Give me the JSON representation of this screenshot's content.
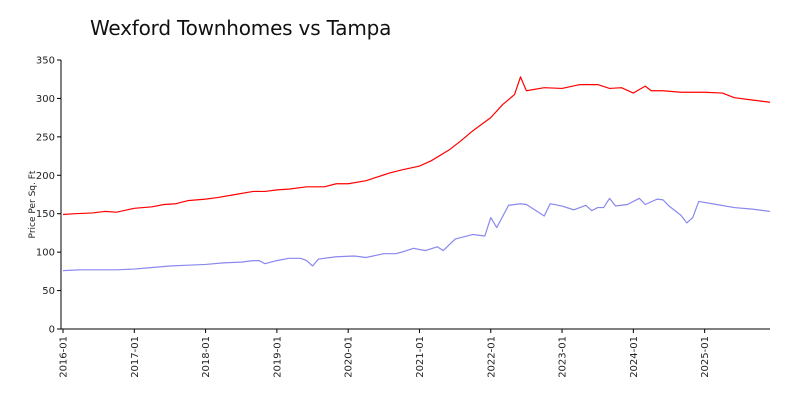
{
  "chart_data": {
    "type": "line",
    "title": "Wexford Townhomes vs Tampa",
    "xlabel": "",
    "ylabel": "Price Per Sq. Ft",
    "ylim": [
      0,
      350
    ],
    "xlim": [
      "2016-01",
      "2025-12"
    ],
    "y_ticks": [
      0,
      50,
      100,
      150,
      200,
      250,
      300,
      350
    ],
    "x_ticks": [
      "2016-01",
      "2017-01",
      "2018-01",
      "2019-01",
      "2020-01",
      "2021-01",
      "2022-01",
      "2023-01",
      "2024-01",
      "2025-01"
    ],
    "grid": false,
    "legend": "none",
    "series": [
      {
        "color": "#ff0000",
        "points": [
          [
            "2016-01",
            149
          ],
          [
            "2016-03",
            150
          ],
          [
            "2016-06",
            151
          ],
          [
            "2016-08",
            153
          ],
          [
            "2016-10",
            152
          ],
          [
            "2017-01",
            157
          ],
          [
            "2017-04",
            159
          ],
          [
            "2017-06",
            162
          ],
          [
            "2017-08",
            163
          ],
          [
            "2017-10",
            167
          ],
          [
            "2018-01",
            169
          ],
          [
            "2018-03",
            171
          ],
          [
            "2018-06",
            175
          ],
          [
            "2018-09",
            179
          ],
          [
            "2018-11",
            179
          ],
          [
            "2019-01",
            181
          ],
          [
            "2019-03",
            182
          ],
          [
            "2019-06",
            185
          ],
          [
            "2019-09",
            185
          ],
          [
            "2019-11",
            189
          ],
          [
            "2020-01",
            189
          ],
          [
            "2020-04",
            193
          ],
          [
            "2020-06",
            198
          ],
          [
            "2020-08",
            203
          ],
          [
            "2020-10",
            207
          ],
          [
            "2021-01",
            212
          ],
          [
            "2021-03",
            219
          ],
          [
            "2021-06",
            233
          ],
          [
            "2021-08",
            245
          ],
          [
            "2021-10",
            258
          ],
          [
            "2022-01",
            275
          ],
          [
            "2022-03",
            292
          ],
          [
            "2022-05",
            305
          ],
          [
            "2022-06",
            328
          ],
          [
            "2022-07",
            310
          ],
          [
            "2022-10",
            314
          ],
          [
            "2023-01",
            313
          ],
          [
            "2023-04",
            318
          ],
          [
            "2023-07",
            318
          ],
          [
            "2023-09",
            313
          ],
          [
            "2023-11",
            314
          ],
          [
            "2024-01",
            307
          ],
          [
            "2024-03",
            316
          ],
          [
            "2024-04",
            310
          ],
          [
            "2024-06",
            310
          ],
          [
            "2024-09",
            308
          ],
          [
            "2025-01",
            308
          ],
          [
            "2025-04",
            307
          ],
          [
            "2025-06",
            301
          ],
          [
            "2025-09",
            298
          ],
          [
            "2025-12",
            295
          ]
        ]
      },
      {
        "color": "#8888ee",
        "points": [
          [
            "2016-01",
            76
          ],
          [
            "2016-04",
            77
          ],
          [
            "2016-07",
            77
          ],
          [
            "2016-10",
            77
          ],
          [
            "2017-01",
            78
          ],
          [
            "2017-04",
            80
          ],
          [
            "2017-07",
            82
          ],
          [
            "2017-10",
            83
          ],
          [
            "2018-01",
            84
          ],
          [
            "2018-04",
            86
          ],
          [
            "2018-07",
            87
          ],
          [
            "2018-09",
            89
          ],
          [
            "2018-10",
            89
          ],
          [
            "2018-11",
            85
          ],
          [
            "2019-01",
            89
          ],
          [
            "2019-03",
            92
          ],
          [
            "2019-05",
            92
          ],
          [
            "2019-06",
            89
          ],
          [
            "2019-07",
            82
          ],
          [
            "2019-08",
            91
          ],
          [
            "2019-11",
            94
          ],
          [
            "2020-02",
            95
          ],
          [
            "2020-04",
            93
          ],
          [
            "2020-07",
            98
          ],
          [
            "2020-09",
            98
          ],
          [
            "2020-10",
            100
          ],
          [
            "2020-12",
            105
          ],
          [
            "2021-02",
            102
          ],
          [
            "2021-04",
            107
          ],
          [
            "2021-05",
            102
          ],
          [
            "2021-07",
            117
          ],
          [
            "2021-10",
            123
          ],
          [
            "2021-12",
            121
          ],
          [
            "2022-01",
            145
          ],
          [
            "2022-02",
            132
          ],
          [
            "2022-04",
            161
          ],
          [
            "2022-06",
            163
          ],
          [
            "2022-07",
            162
          ],
          [
            "2022-09",
            152
          ],
          [
            "2022-10",
            147
          ],
          [
            "2022-11",
            163
          ],
          [
            "2023-01",
            160
          ],
          [
            "2023-03",
            155
          ],
          [
            "2023-05",
            161
          ],
          [
            "2023-06",
            154
          ],
          [
            "2023-07",
            158
          ],
          [
            "2023-08",
            158
          ],
          [
            "2023-09",
            170
          ],
          [
            "2023-10",
            160
          ],
          [
            "2023-12",
            162
          ],
          [
            "2024-02",
            170
          ],
          [
            "2024-03",
            162
          ],
          [
            "2024-05",
            169
          ],
          [
            "2024-06",
            168
          ],
          [
            "2024-07",
            160
          ],
          [
            "2024-09",
            148
          ],
          [
            "2024-10",
            138
          ],
          [
            "2024-11",
            145
          ],
          [
            "2024-12",
            166
          ],
          [
            "2025-03",
            162
          ],
          [
            "2025-06",
            158
          ],
          [
            "2025-09",
            156
          ],
          [
            "2025-12",
            153
          ]
        ]
      }
    ]
  }
}
